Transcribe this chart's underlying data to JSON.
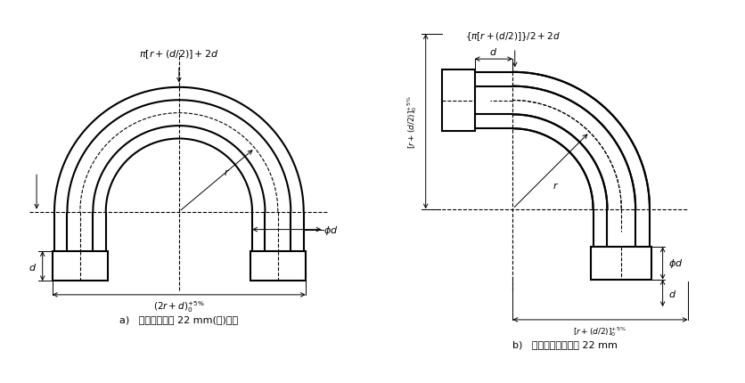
{
  "fig_width": 8.37,
  "fig_height": 4.31,
  "bg_color": "#ffffff",
  "line_color": "#000000",
  "label_a": "a)   软管公称内径 22 mm(含)以下",
  "label_b": "b)   软管公称内径大于 22 mm",
  "font_path": "SimSun"
}
